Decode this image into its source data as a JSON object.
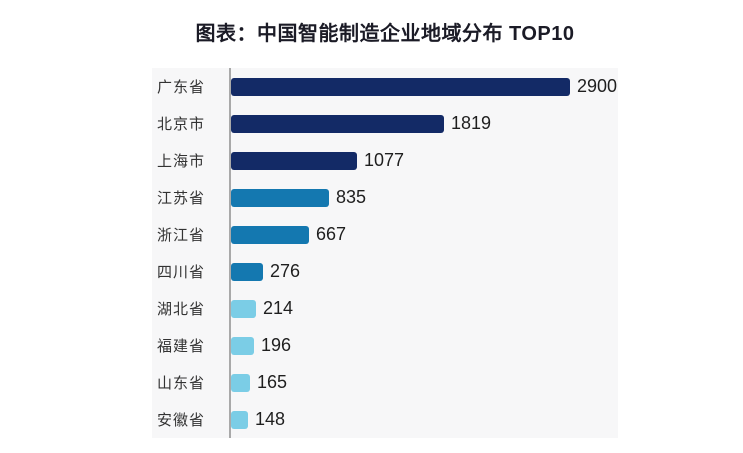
{
  "title": "图表：中国智能制造企业地域分布 TOP10",
  "chart_data": {
    "type": "bar",
    "orientation": "horizontal",
    "title": "图表：中国智能制造企业地域分布 TOP10",
    "categories": [
      "广东省",
      "北京市",
      "上海市",
      "江苏省",
      "浙江省",
      "四川省",
      "湖北省",
      "福建省",
      "山东省",
      "安徽省"
    ],
    "values": [
      2900,
      1819,
      1077,
      835,
      667,
      276,
      214,
      196,
      165,
      148
    ],
    "value_labels": [
      "2900",
      "1819",
      "1077",
      "835",
      "667",
      "276",
      "214",
      "196",
      "165",
      "148"
    ],
    "xlim": [
      0,
      2900
    ],
    "grid": false,
    "legend_position": "none",
    "bar_colors": [
      "#132a66",
      "#132a66",
      "#132a66",
      "#1478b0",
      "#1478b0",
      "#1478b0",
      "#7bcde6",
      "#7bcde6",
      "#7bcde6",
      "#7bcde6"
    ]
  },
  "colors": {
    "panel_background": "#f7f7f8",
    "axis_line": "#a9a9a9",
    "dark_series": "#132a66",
    "medium_series": "#1478b0",
    "light_series": "#7bcde6",
    "category_label": "#333333",
    "value_label": "#1f1f1f",
    "title_text": "#1b1b26"
  }
}
